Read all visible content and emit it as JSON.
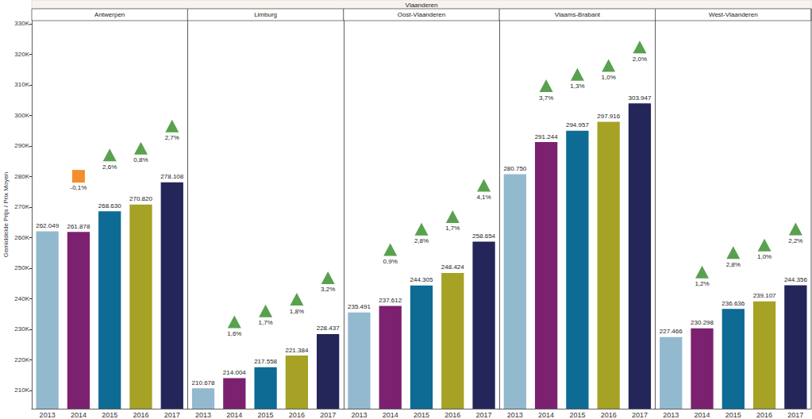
{
  "chart_data": {
    "type": "bar",
    "title": "Vlaanderen",
    "y_label": "Gemiddelde Prijs / Prix Moyen",
    "ylim": [
      204000,
      331000
    ],
    "yticks": [
      {
        "value": 210000,
        "label": "210K"
      },
      {
        "value": 220000,
        "label": "220K"
      },
      {
        "value": 230000,
        "label": "230K"
      },
      {
        "value": 240000,
        "label": "240K"
      },
      {
        "value": 250000,
        "label": "250K"
      },
      {
        "value": 260000,
        "label": "260K"
      },
      {
        "value": 270000,
        "label": "270K"
      },
      {
        "value": 280000,
        "label": "280K"
      },
      {
        "value": 290000,
        "label": "290K"
      },
      {
        "value": 300000,
        "label": "300K"
      },
      {
        "value": 310000,
        "label": "310K"
      },
      {
        "value": 320000,
        "label": "320K"
      },
      {
        "value": 330000,
        "label": "330K"
      }
    ],
    "grid": false,
    "data_labels": true,
    "colors": [
      "#93b9cf",
      "#7c2070",
      "#0d6b94",
      "#a5a226",
      "#242659"
    ],
    "panels": [
      {
        "title": "Antwerpen",
        "categories": [
          "2013",
          "2014",
          "2015",
          "2016",
          "2017"
        ],
        "values": [
          262049,
          261878,
          268630,
          270820,
          278108
        ],
        "value_labels": [
          "262.049",
          "261.878",
          "268.630",
          "270.820",
          "278.108"
        ],
        "change": [
          null,
          -0.1,
          2.6,
          0.8,
          2.7
        ],
        "change_labels": [
          null,
          "-0,1%",
          "2,6%",
          "0,8%",
          "2,7%"
        ]
      },
      {
        "title": "Limburg",
        "categories": [
          "2013",
          "2014",
          "2015",
          "2016",
          "2017"
        ],
        "values": [
          210678,
          214004,
          217558,
          221384,
          228437
        ],
        "value_labels": [
          "210.678",
          "214.004",
          "217.558",
          "221.384",
          "228.437"
        ],
        "change": [
          null,
          1.6,
          1.7,
          1.8,
          3.2
        ],
        "change_labels": [
          null,
          "1,6%",
          "1,7%",
          "1,8%",
          "3,2%"
        ]
      },
      {
        "title": "Oost-Vlaanderen",
        "categories": [
          "2013",
          "2014",
          "2015",
          "2016",
          "2017"
        ],
        "values": [
          235491,
          237612,
          244305,
          248424,
          258654
        ],
        "value_labels": [
          "235.491",
          "237.612",
          "244.305",
          "248.424",
          "258.654"
        ],
        "change": [
          null,
          0.9,
          2.8,
          1.7,
          4.1
        ],
        "change_labels": [
          null,
          "0,9%",
          "2,8%",
          "1,7%",
          "4,1%"
        ]
      },
      {
        "title": "Vlaams-Brabant",
        "categories": [
          "2013",
          "2014",
          "2015",
          "2016",
          "2017"
        ],
        "values": [
          280750,
          291244,
          294957,
          297916,
          303947
        ],
        "value_labels": [
          "280.750",
          "291.244",
          "294.957",
          "297.916",
          "303.947"
        ],
        "change": [
          null,
          3.7,
          1.3,
          1.0,
          2.0
        ],
        "change_labels": [
          null,
          "3,7%",
          "1,3%",
          "1,0%",
          "2,0%"
        ]
      },
      {
        "title": "West-Vlaanderen",
        "categories": [
          "2013",
          "2014",
          "2015",
          "2016",
          "2017"
        ],
        "values": [
          227466,
          230298,
          236636,
          239107,
          244356
        ],
        "value_labels": [
          "227.466",
          "230.298",
          "236.636",
          "239.107",
          "244.356"
        ],
        "change": [
          null,
          1.2,
          2.8,
          1.0,
          2.2
        ],
        "change_labels": [
          null,
          "1,2%",
          "2,8%",
          "1,0%",
          "2,2%"
        ]
      }
    ]
  }
}
